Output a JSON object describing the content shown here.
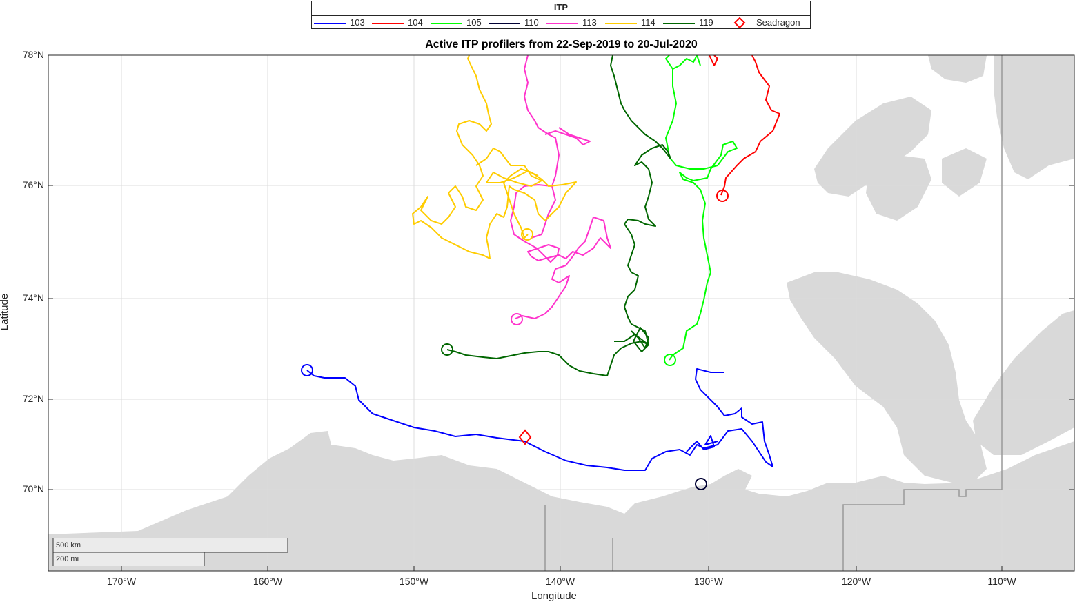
{
  "title": "Active ITP profilers from 22-Sep-2019 to 20-Jul-2020",
  "xlabel": "Longitude",
  "ylabel": "Latitude",
  "lat_ticks": [
    "78°N",
    "76°N",
    "74°N",
    "72°N",
    "70°N"
  ],
  "lon_ticks": [
    "170°W",
    "160°W",
    "150°W",
    "140°W",
    "130°W",
    "120°W",
    "110°W"
  ],
  "legend": {
    "title": "ITP",
    "items": [
      {
        "label": "103",
        "color": "#0000ff"
      },
      {
        "label": "104",
        "color": "#ff0000"
      },
      {
        "label": "105",
        "color": "#00ff00"
      },
      {
        "label": "110",
        "color": "#000033"
      },
      {
        "label": "113",
        "color": "#ff33cc"
      },
      {
        "label": "114",
        "color": "#ffcc00"
      },
      {
        "label": "119",
        "color": "#006600"
      }
    ],
    "seadragon": {
      "label": "Seadragon",
      "color": "#ff0000",
      "icon": "diamond-marker-icon"
    }
  },
  "scalebar": {
    "km_label": "500 km",
    "mi_label": "200 mi"
  },
  "colors": {
    "land": "#d9d9d9",
    "grid": "#dcdcdc",
    "frame": "#262626",
    "border": "#999999"
  }
}
